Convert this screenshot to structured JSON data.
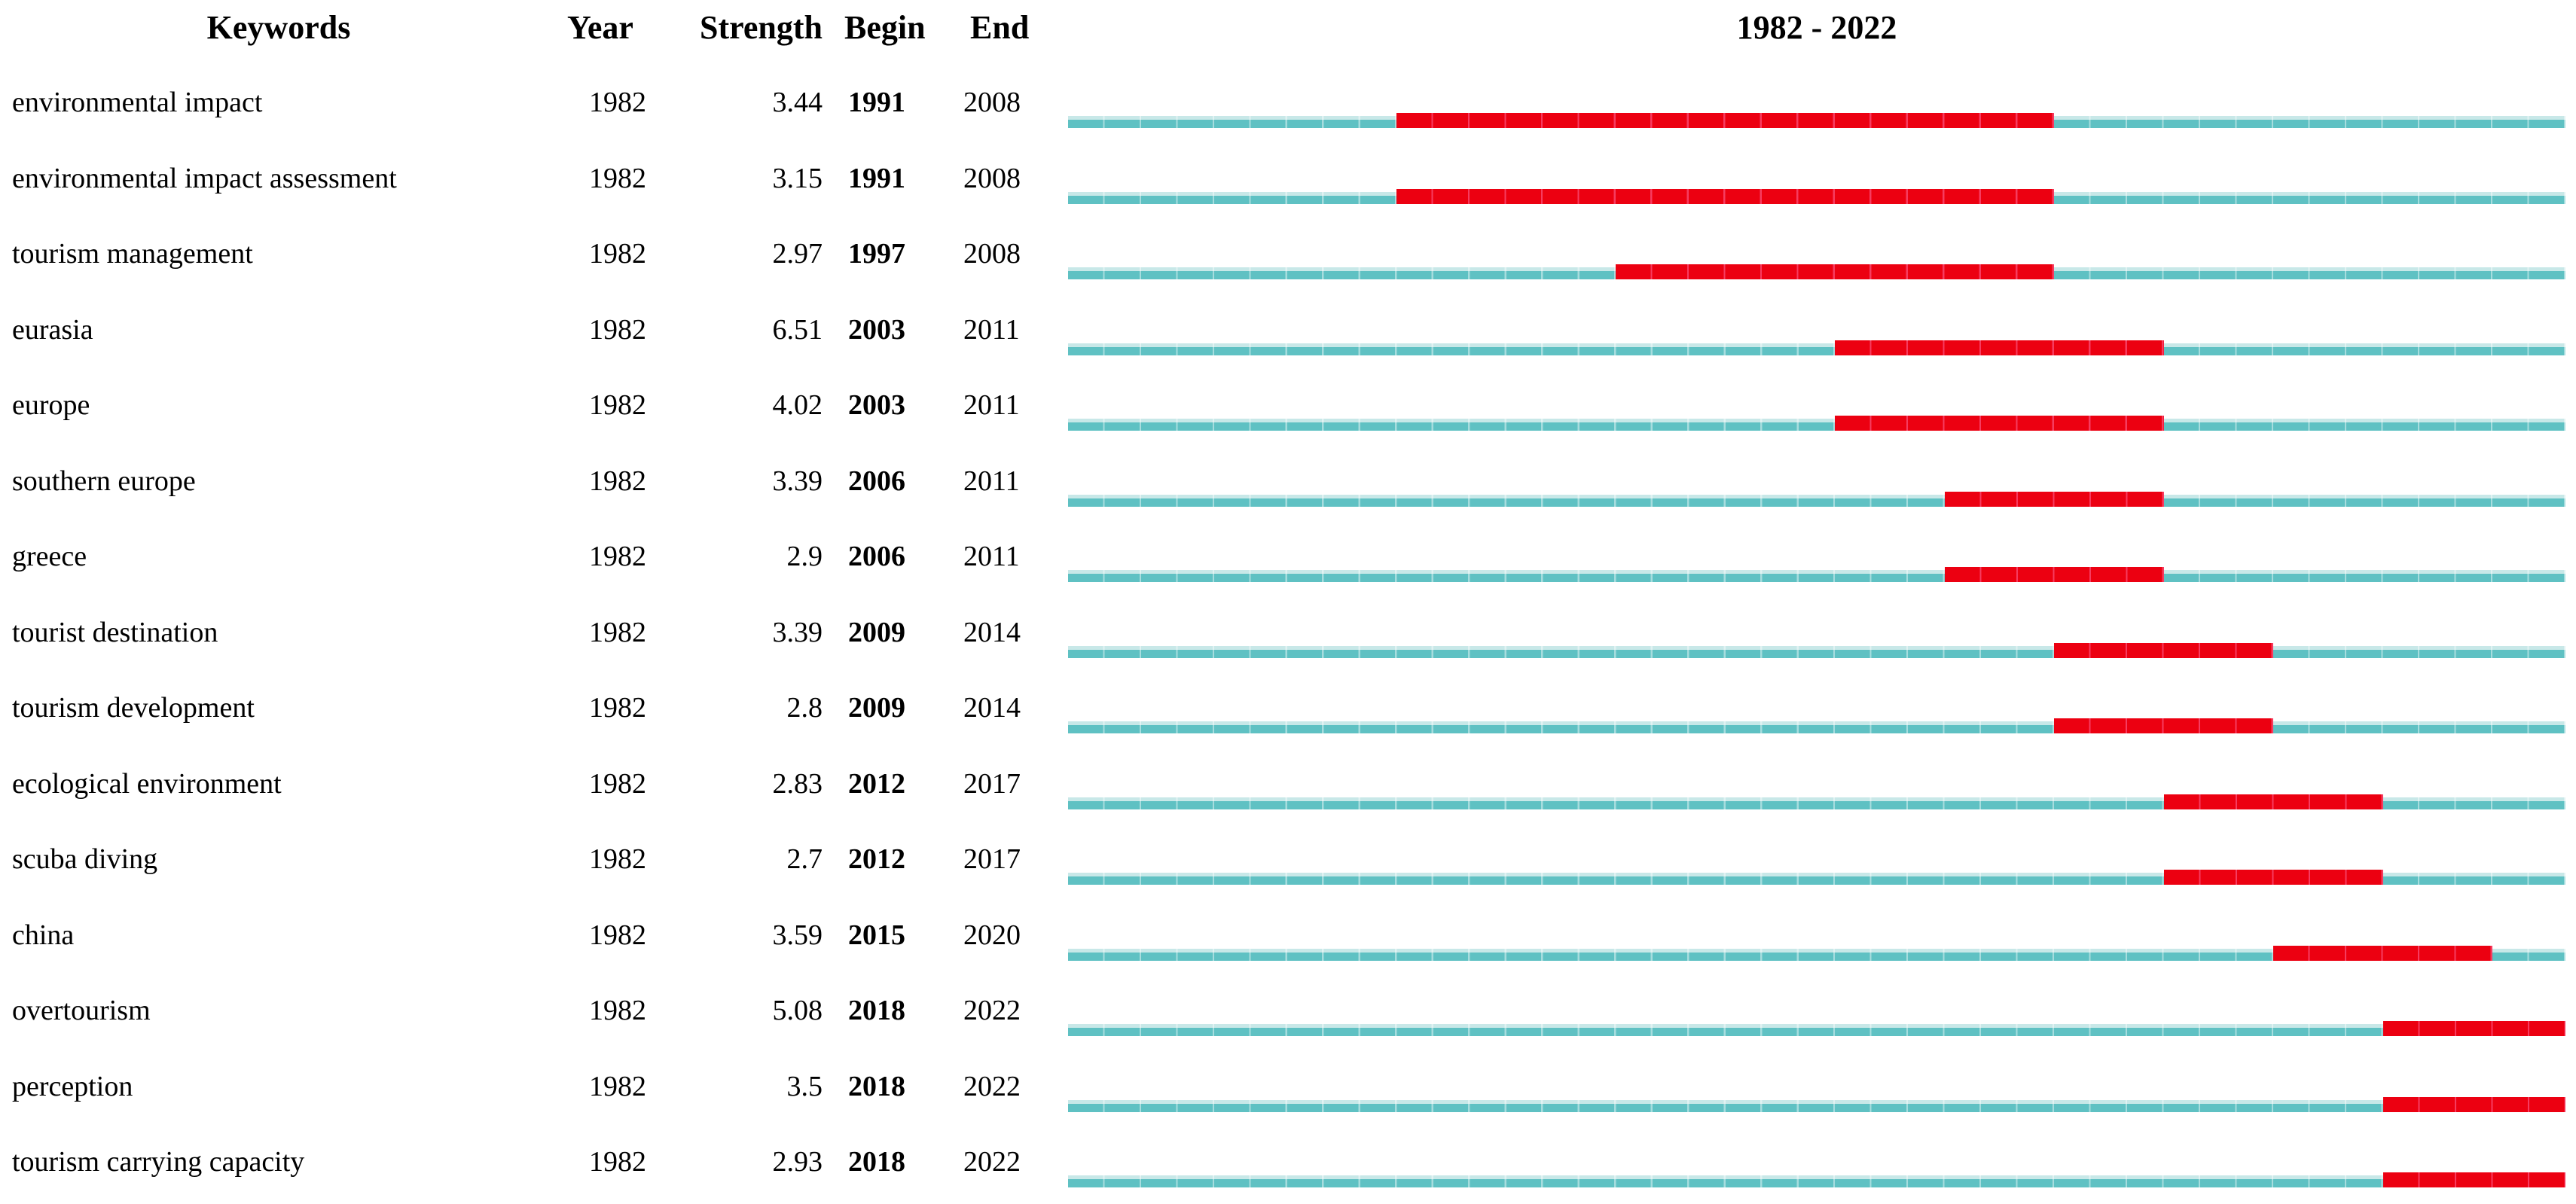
{
  "header": {
    "keywords_label": "Keywords",
    "year_label": "Year",
    "strength_label": "Strength",
    "begin_label": "Begin",
    "end_label": "End",
    "timeline_label": "1982 - 2022"
  },
  "colors": {
    "line": "#5FC1C3",
    "line_highlight": "#C8E8E8",
    "burst": "#EC0011",
    "text": "#000000"
  },
  "chart_data": {
    "type": "bar",
    "subtype": "citation-burst-timeline",
    "title": "1982 - 2022",
    "columns": [
      "Keywords",
      "Year",
      "Strength",
      "Begin",
      "End"
    ],
    "x_range": [
      1982,
      2022
    ],
    "legend": {
      "teal_line": "full interval 1982-2022",
      "red_segment": "burst duration from Begin to End year"
    },
    "rows": [
      {
        "keyword": "environmental impact",
        "year": 1982,
        "strength": "3.44",
        "begin": 1991,
        "end": 2008
      },
      {
        "keyword": "environmental impact assessment",
        "year": 1982,
        "strength": "3.15",
        "begin": 1991,
        "end": 2008
      },
      {
        "keyword": "tourism management",
        "year": 1982,
        "strength": "2.97",
        "begin": 1997,
        "end": 2008
      },
      {
        "keyword": "eurasia",
        "year": 1982,
        "strength": "6.51",
        "begin": 2003,
        "end": 2011
      },
      {
        "keyword": "europe",
        "year": 1982,
        "strength": "4.02",
        "begin": 2003,
        "end": 2011
      },
      {
        "keyword": "southern europe",
        "year": 1982,
        "strength": "3.39",
        "begin": 2006,
        "end": 2011
      },
      {
        "keyword": "greece",
        "year": 1982,
        "strength": "2.9",
        "begin": 2006,
        "end": 2011
      },
      {
        "keyword": "tourist destination",
        "year": 1982,
        "strength": "3.39",
        "begin": 2009,
        "end": 2014
      },
      {
        "keyword": "tourism development",
        "year": 1982,
        "strength": "2.8",
        "begin": 2009,
        "end": 2014
      },
      {
        "keyword": "ecological environment",
        "year": 1982,
        "strength": "2.83",
        "begin": 2012,
        "end": 2017
      },
      {
        "keyword": "scuba diving",
        "year": 1982,
        "strength": "2.7",
        "begin": 2012,
        "end": 2017
      },
      {
        "keyword": "china",
        "year": 1982,
        "strength": "3.59",
        "begin": 2015,
        "end": 2020
      },
      {
        "keyword": "overtourism",
        "year": 1982,
        "strength": "5.08",
        "begin": 2018,
        "end": 2022
      },
      {
        "keyword": "perception",
        "year": 1982,
        "strength": "3.5",
        "begin": 2018,
        "end": 2022
      },
      {
        "keyword": "tourism carrying capacity",
        "year": 1982,
        "strength": "2.93",
        "begin": 2018,
        "end": 2022
      }
    ]
  }
}
